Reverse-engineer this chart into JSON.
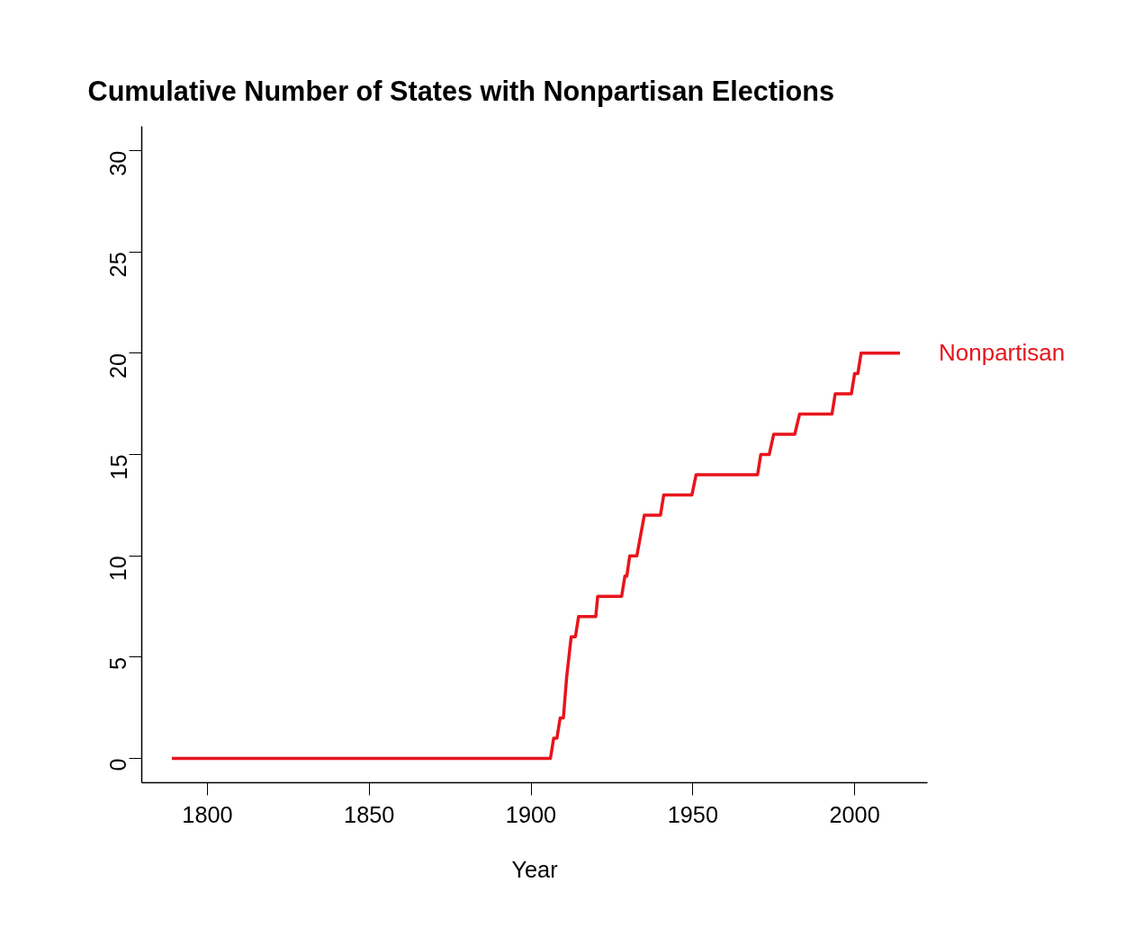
{
  "chart_data": {
    "type": "line",
    "title": "Cumulative Number of States with Nonpartisan Elections",
    "xlabel": "Year",
    "x": [
      1789,
      1906,
      1907,
      1908,
      1909,
      1910,
      1911,
      1911.7,
      1912.4,
      1913.7,
      1914.7,
      1920,
      1920.6,
      1928,
      1929,
      1929.6,
      1930.5,
      1932.7,
      1935,
      1940,
      1941,
      1949.7,
      1951,
      1970,
      1971,
      1973.6,
      1975,
      1981.5,
      1983,
      1993,
      1994,
      1999,
      2000,
      2001,
      2002,
      2014
    ],
    "series": [
      {
        "name": "Nonpartisan",
        "color": "#e8141c",
        "values": [
          0,
          0,
          1,
          1,
          2,
          2,
          4,
          5,
          6,
          6,
          7,
          7,
          8,
          8,
          9,
          9,
          10,
          10,
          12,
          12,
          13,
          13,
          14,
          14,
          15,
          15,
          16,
          16,
          17,
          17,
          18,
          18,
          19,
          19,
          20,
          20
        ]
      }
    ],
    "xlim": [
      1779.7,
      2022.5
    ],
    "ylim": [
      -1.2,
      31.2
    ],
    "xticks": [
      1800,
      1850,
      1900,
      1950,
      2000
    ],
    "yticks": [
      0,
      5,
      10,
      15,
      20,
      25,
      30
    ],
    "grid": false,
    "marker": "none",
    "line_style": "solid"
  }
}
